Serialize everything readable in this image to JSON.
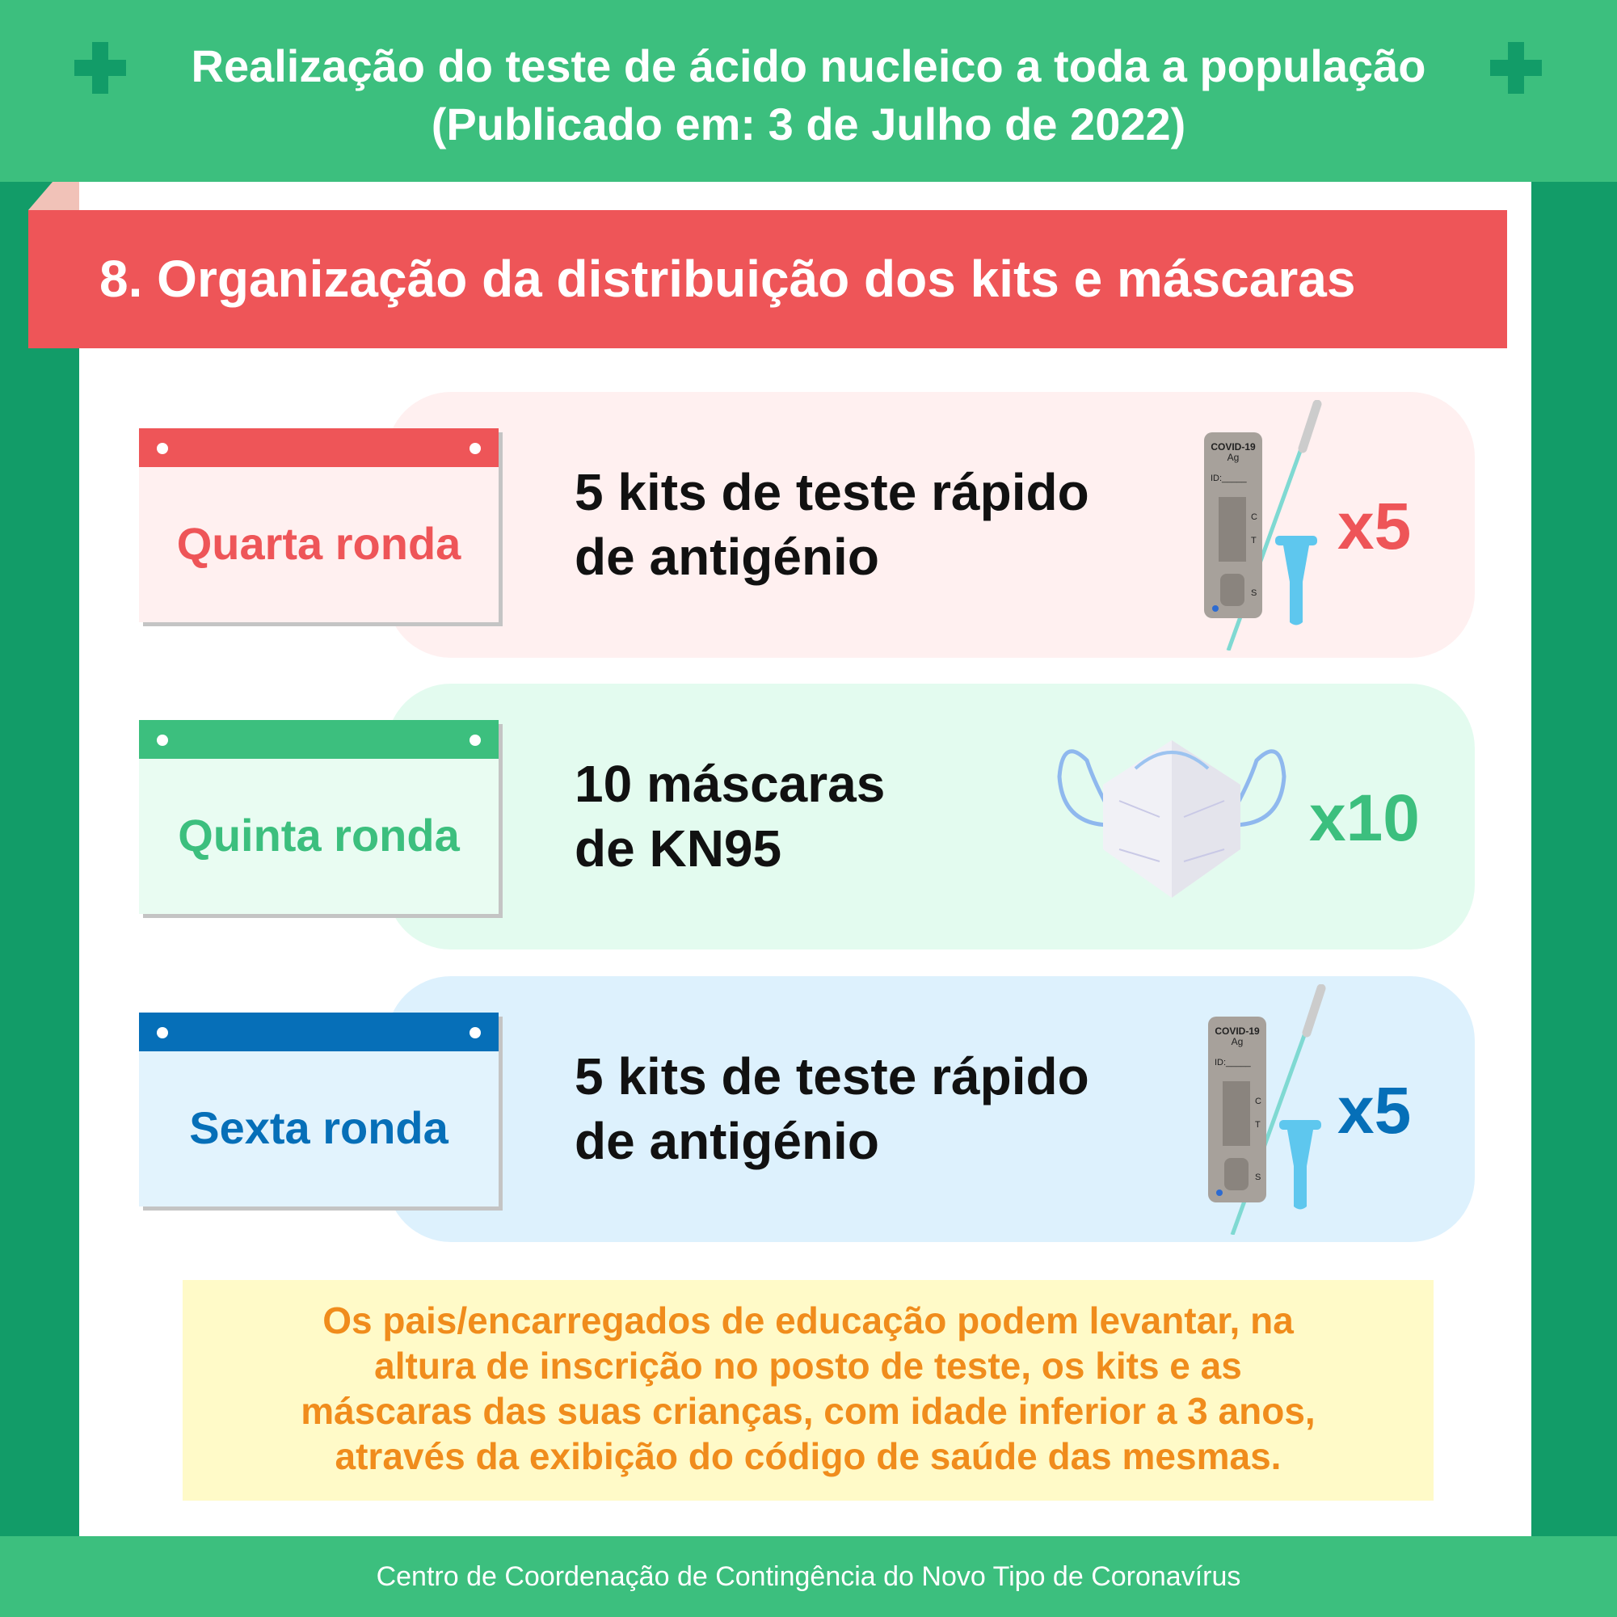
{
  "header": {
    "title_line1": "Realização do teste de ácido nucleico a toda a população",
    "title_line2": "(Publicado em: 3 de Julho de 2022)"
  },
  "section": {
    "title": "8. Organização da distribuição dos kits e máscaras"
  },
  "rounds": [
    {
      "label": "Quarta ronda",
      "line1": "5 kits de teste rápido",
      "line2": "de antigénio",
      "multiplier": "x5",
      "item_icon": "antigen-test-kit-icon",
      "color": "#ee5558",
      "bg": "#fff0f0",
      "cal_bg": "#fff0f0"
    },
    {
      "label": "Quinta ronda",
      "line1": "10 máscaras",
      "line2": "de KN95",
      "multiplier": "x10",
      "item_icon": "kn95-mask-icon",
      "color": "#3cbf7e",
      "bg": "#e3fbef",
      "cal_bg": "#e9fcf2"
    },
    {
      "label": "Sexta ronda",
      "line1": "5 kits de teste rápido",
      "line2": "de antigénio",
      "multiplier": "x5",
      "item_icon": "antigen-test-kit-icon",
      "color": "#066fb8",
      "bg": "#ddf1fd",
      "cal_bg": "#e2f3fd"
    }
  ],
  "kit": {
    "brand": "COVID-19",
    "sub": "Ag",
    "id": "ID:_____",
    "c": "C",
    "t": "T",
    "s": "S"
  },
  "note": {
    "lines": [
      "Os pais/encarregados de educação podem levantar, na",
      "altura de inscrição no posto de teste, os kits e as",
      "máscaras das suas crianças, com idade inferior a 3 anos,",
      "através da exibição do código de saúde das mesmas."
    ]
  },
  "footer": {
    "text": "Centro de Coordenação de Contingência do Novo Tipo de Coronavírus"
  }
}
